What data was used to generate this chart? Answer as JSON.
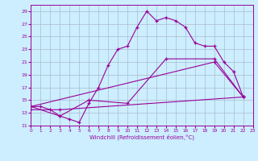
{
  "background_color": "#cceeff",
  "line_color": "#990099",
  "grid_color": "#aabbcc",
  "xlabel": "Windchill (Refroidissement éolien,°C)",
  "xlim": [
    0,
    23
  ],
  "ylim": [
    11,
    30
  ],
  "xticks": [
    0,
    1,
    2,
    3,
    4,
    5,
    6,
    7,
    8,
    9,
    10,
    11,
    12,
    13,
    14,
    15,
    16,
    17,
    18,
    19,
    20,
    21,
    22,
    23
  ],
  "yticks": [
    11,
    13,
    15,
    17,
    19,
    21,
    23,
    25,
    27,
    29
  ],
  "series": [
    {
      "x": [
        0,
        1,
        2,
        3,
        4,
        5,
        6,
        7,
        8,
        9,
        10,
        11,
        12,
        13,
        14,
        15,
        16,
        17,
        18,
        19,
        20,
        21,
        22
      ],
      "y": [
        14,
        14,
        13.5,
        12.5,
        12,
        11.5,
        14.5,
        17,
        20.5,
        23,
        23.5,
        26.5,
        29,
        27.5,
        28,
        27.5,
        26.5,
        24,
        23.5,
        23.5,
        21,
        19.5,
        15.5
      ]
    },
    {
      "x": [
        0,
        3,
        6,
        10,
        14,
        19,
        22
      ],
      "y": [
        14,
        12.5,
        15,
        14.5,
        21.5,
        21.5,
        15.5
      ]
    },
    {
      "x": [
        0,
        3,
        22
      ],
      "y": [
        13.5,
        13.5,
        15.5
      ]
    },
    {
      "x": [
        0,
        19,
        22
      ],
      "y": [
        14,
        21,
        15.5
      ]
    }
  ]
}
